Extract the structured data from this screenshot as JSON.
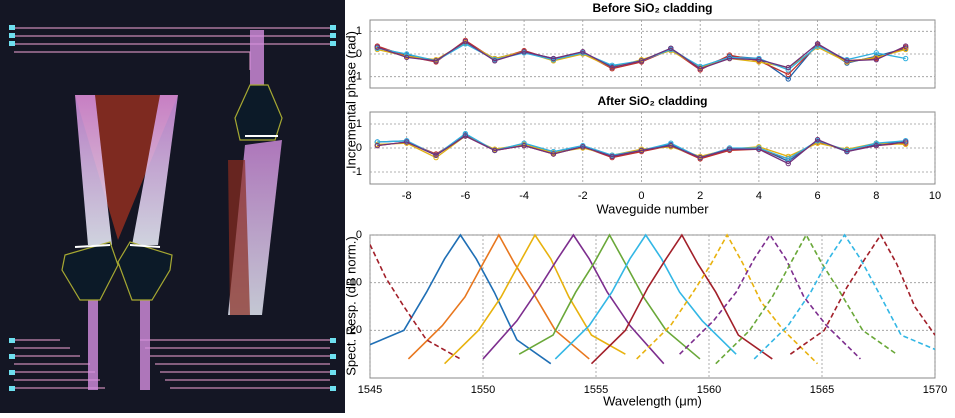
{
  "chart_data": [
    {
      "type": "line",
      "title": "Before SiO₂ cladding",
      "ylabel": "Incremental phase (rad)",
      "markers": true,
      "grid": true,
      "x": [
        -9,
        -8,
        -7,
        -6,
        -5,
        -4,
        -3,
        -2,
        -1,
        0,
        1,
        2,
        3,
        4,
        5,
        6,
        7,
        8,
        9
      ],
      "xlim": [
        -9.25,
        10
      ],
      "xticks": [
        -8,
        -6,
        -4,
        -2,
        0,
        2,
        4,
        6,
        8,
        10
      ],
      "ylim": [
        -1.5,
        1.5
      ],
      "yticks": [
        -1,
        0,
        1
      ],
      "series": [
        {
          "color": "#1f5fa8",
          "values": [
            0.3,
            -0.05,
            -0.3,
            0.5,
            -0.2,
            0.1,
            -0.2,
            0.05,
            -0.55,
            -0.3,
            0.25,
            -0.6,
            -0.1,
            -0.2,
            -1.1,
            0.45,
            -0.4,
            -0.1,
            0.25
          ]
        },
        {
          "color": "#c0302a",
          "values": [
            0.35,
            -0.1,
            -0.35,
            0.6,
            -0.25,
            0.15,
            -0.25,
            0.05,
            -0.65,
            -0.35,
            0.2,
            -0.7,
            -0.05,
            -0.3,
            -0.9,
            0.4,
            -0.3,
            -0.2,
            0.3
          ]
        },
        {
          "color": "#e0b010",
          "values": [
            0.2,
            -0.1,
            -0.25,
            0.5,
            -0.2,
            0.1,
            -0.3,
            0.0,
            -0.6,
            -0.25,
            0.15,
            -0.6,
            -0.2,
            -0.35,
            -0.6,
            0.3,
            -0.35,
            -0.15,
            0.2
          ]
        },
        {
          "color": "#30b0e0",
          "values": [
            0.25,
            0.0,
            -0.3,
            0.45,
            -0.25,
            0.05,
            -0.25,
            0.05,
            -0.5,
            -0.3,
            0.2,
            -0.55,
            -0.15,
            -0.2,
            -0.7,
            0.35,
            -0.25,
            0.05,
            -0.2
          ]
        },
        {
          "color": "#70307a",
          "values": [
            0.3,
            -0.15,
            -0.3,
            0.55,
            -0.3,
            0.1,
            -0.2,
            0.1,
            -0.6,
            -0.3,
            0.25,
            -0.65,
            -0.2,
            -0.25,
            -0.6,
            0.45,
            -0.3,
            -0.25,
            0.35
          ]
        }
      ]
    },
    {
      "type": "line",
      "title": "After SiO₂ cladding",
      "xlabel": "Waveguide number",
      "markers": true,
      "grid": true,
      "x": [
        -9,
        -8,
        -7,
        -6,
        -5,
        -4,
        -3,
        -2,
        -1,
        0,
        1,
        2,
        3,
        4,
        5,
        6,
        7,
        8,
        9
      ],
      "xlim": [
        -9.25,
        10
      ],
      "xticks": [
        -8,
        -6,
        -4,
        -2,
        0,
        2,
        4,
        6,
        8,
        10
      ],
      "ylim": [
        -1.5,
        1.5
      ],
      "yticks": [
        -1,
        0,
        1
      ],
      "series": [
        {
          "color": "#1f5fa8",
          "values": [
            0.25,
            0.3,
            -0.3,
            0.55,
            -0.1,
            0.15,
            -0.2,
            0.05,
            -0.35,
            -0.1,
            0.15,
            -0.4,
            -0.05,
            0.0,
            -0.55,
            0.3,
            -0.15,
            0.15,
            0.3
          ]
        },
        {
          "color": "#c0302a",
          "values": [
            0.1,
            0.25,
            -0.25,
            0.5,
            -0.1,
            0.1,
            -0.25,
            0.05,
            -0.4,
            -0.15,
            0.1,
            -0.45,
            -0.1,
            -0.05,
            -0.45,
            0.25,
            -0.1,
            0.1,
            0.2
          ]
        },
        {
          "color": "#e0b010",
          "values": [
            0.15,
            0.2,
            -0.4,
            0.5,
            -0.05,
            0.15,
            -0.2,
            0.0,
            -0.3,
            -0.05,
            0.05,
            -0.35,
            -0.05,
            0.05,
            -0.35,
            0.2,
            -0.05,
            0.2,
            0.15
          ]
        },
        {
          "color": "#30b0e0",
          "values": [
            0.25,
            0.3,
            -0.3,
            0.6,
            -0.1,
            0.2,
            -0.15,
            0.1,
            -0.3,
            -0.1,
            0.2,
            -0.4,
            0.0,
            0.0,
            -0.45,
            0.3,
            -0.1,
            0.2,
            0.3
          ]
        },
        {
          "color": "#70307a",
          "values": [
            0.1,
            0.25,
            -0.3,
            0.5,
            -0.1,
            0.1,
            -0.25,
            0.05,
            -0.35,
            -0.1,
            0.1,
            -0.4,
            -0.05,
            -0.05,
            -0.65,
            0.35,
            -0.15,
            0.1,
            0.25
          ]
        }
      ]
    },
    {
      "type": "line",
      "xlabel": "Wavelength (μm)",
      "ylabel": "Spect. Resp. (dB norm.)",
      "markers": false,
      "grid": true,
      "xlim": [
        1545,
        1570
      ],
      "xticks": [
        1545,
        1550,
        1555,
        1560,
        1565,
        1570
      ],
      "ylim": [
        -30,
        0
      ],
      "yticks": [
        -20,
        -10,
        0
      ],
      "series": [
        {
          "color": "#1f6fb5",
          "dashed": false,
          "x": [
            1545,
            1546.5,
            1547.5,
            1548.3,
            1549,
            1549.7,
            1550.5,
            1551.5,
            1553
          ],
          "values": [
            -23,
            -20,
            -12,
            -5,
            0,
            -5,
            -12,
            -22,
            -27
          ]
        },
        {
          "color": "#e8771e",
          "dashed": false,
          "x": [
            1546.7,
            1548.2,
            1549.2,
            1550,
            1550.7,
            1551.4,
            1552.2,
            1553.2,
            1554.7
          ],
          "values": [
            -26,
            -19,
            -13,
            -6,
            0,
            -6,
            -12,
            -20,
            -26
          ]
        },
        {
          "color": "#e8b20e",
          "dashed": false,
          "x": [
            1548.3,
            1549.8,
            1550.8,
            1551.6,
            1552.3,
            1553,
            1553.8,
            1554.8,
            1556.3
          ],
          "values": [
            -27,
            -20,
            -13,
            -6,
            0,
            -5,
            -13,
            -21,
            -25
          ]
        },
        {
          "color": "#7d2e8e",
          "dashed": false,
          "x": [
            1550,
            1551.5,
            1552.5,
            1553.3,
            1554,
            1554.7,
            1555.5,
            1556.5,
            1558
          ],
          "values": [
            -26,
            -18,
            -11,
            -5,
            0,
            -5,
            -12,
            -19,
            -27
          ]
        },
        {
          "color": "#6aa839",
          "dashed": false,
          "x": [
            1551.6,
            1553.1,
            1554.1,
            1554.9,
            1555.6,
            1556.3,
            1557.1,
            1558.1,
            1559.6
          ],
          "values": [
            -25,
            -21,
            -12,
            -6,
            0,
            -6,
            -13,
            -20,
            -26
          ]
        },
        {
          "color": "#33b7e5",
          "dashed": false,
          "x": [
            1553.2,
            1554.7,
            1555.7,
            1556.5,
            1557.2,
            1557.9,
            1558.7,
            1559.7,
            1561.2
          ],
          "values": [
            -26,
            -19,
            -12,
            -5,
            0,
            -5,
            -12,
            -18,
            -25
          ]
        },
        {
          "color": "#a2202a",
          "dashed": false,
          "x": [
            1554.8,
            1556.3,
            1557.3,
            1558.1,
            1558.8,
            1559.5,
            1560.3,
            1561.3,
            1562.8
          ],
          "values": [
            -27,
            -20,
            -11,
            -5,
            0,
            -6,
            -12,
            -21,
            -26
          ]
        },
        {
          "color": "#e8b20e",
          "dashed": true,
          "x": [
            1556.8,
            1558.3,
            1559.3,
            1560.1,
            1560.8,
            1561.5,
            1562.3,
            1563.3,
            1564.8
          ],
          "values": [
            -26,
            -19,
            -12,
            -6,
            0,
            -6,
            -14,
            -20,
            -27
          ]
        },
        {
          "color": "#7d2e8e",
          "dashed": true,
          "x": [
            1558.7,
            1560.2,
            1561.2,
            1562,
            1562.7,
            1563.4,
            1564.2,
            1565.2,
            1566.7
          ],
          "values": [
            -25,
            -18,
            -12,
            -5,
            0,
            -5,
            -13,
            -19,
            -26
          ]
        },
        {
          "color": "#6aa839",
          "dashed": true,
          "x": [
            1560.3,
            1561.8,
            1562.8,
            1563.6,
            1564.3,
            1565,
            1565.8,
            1566.8,
            1568.3
          ],
          "values": [
            -27,
            -20,
            -13,
            -6,
            0,
            -6,
            -12,
            -20,
            -25
          ]
        },
        {
          "color": "#33b7e5",
          "dashed": true,
          "x": [
            1562,
            1563.5,
            1564.5,
            1565.3,
            1566,
            1566.7,
            1567.5,
            1568.5,
            1570
          ],
          "values": [
            -26,
            -19,
            -12,
            -5,
            0,
            -5,
            -12,
            -21,
            -24
          ]
        },
        {
          "color": "#a2202a",
          "dashed": true,
          "x": [
            1563.6,
            1565.1,
            1566.1,
            1566.9,
            1567.6,
            1568.3,
            1569.1,
            1570
          ],
          "values": [
            -25,
            -20,
            -11,
            -5,
            0,
            -6,
            -15,
            -21
          ]
        },
        {
          "color": "#a2202a",
          "dashed": true,
          "x": [
            1545,
            1545.7,
            1546.5,
            1547.5,
            1549
          ],
          "values": [
            -2,
            -9,
            -15,
            -22,
            -26
          ]
        }
      ]
    }
  ]
}
